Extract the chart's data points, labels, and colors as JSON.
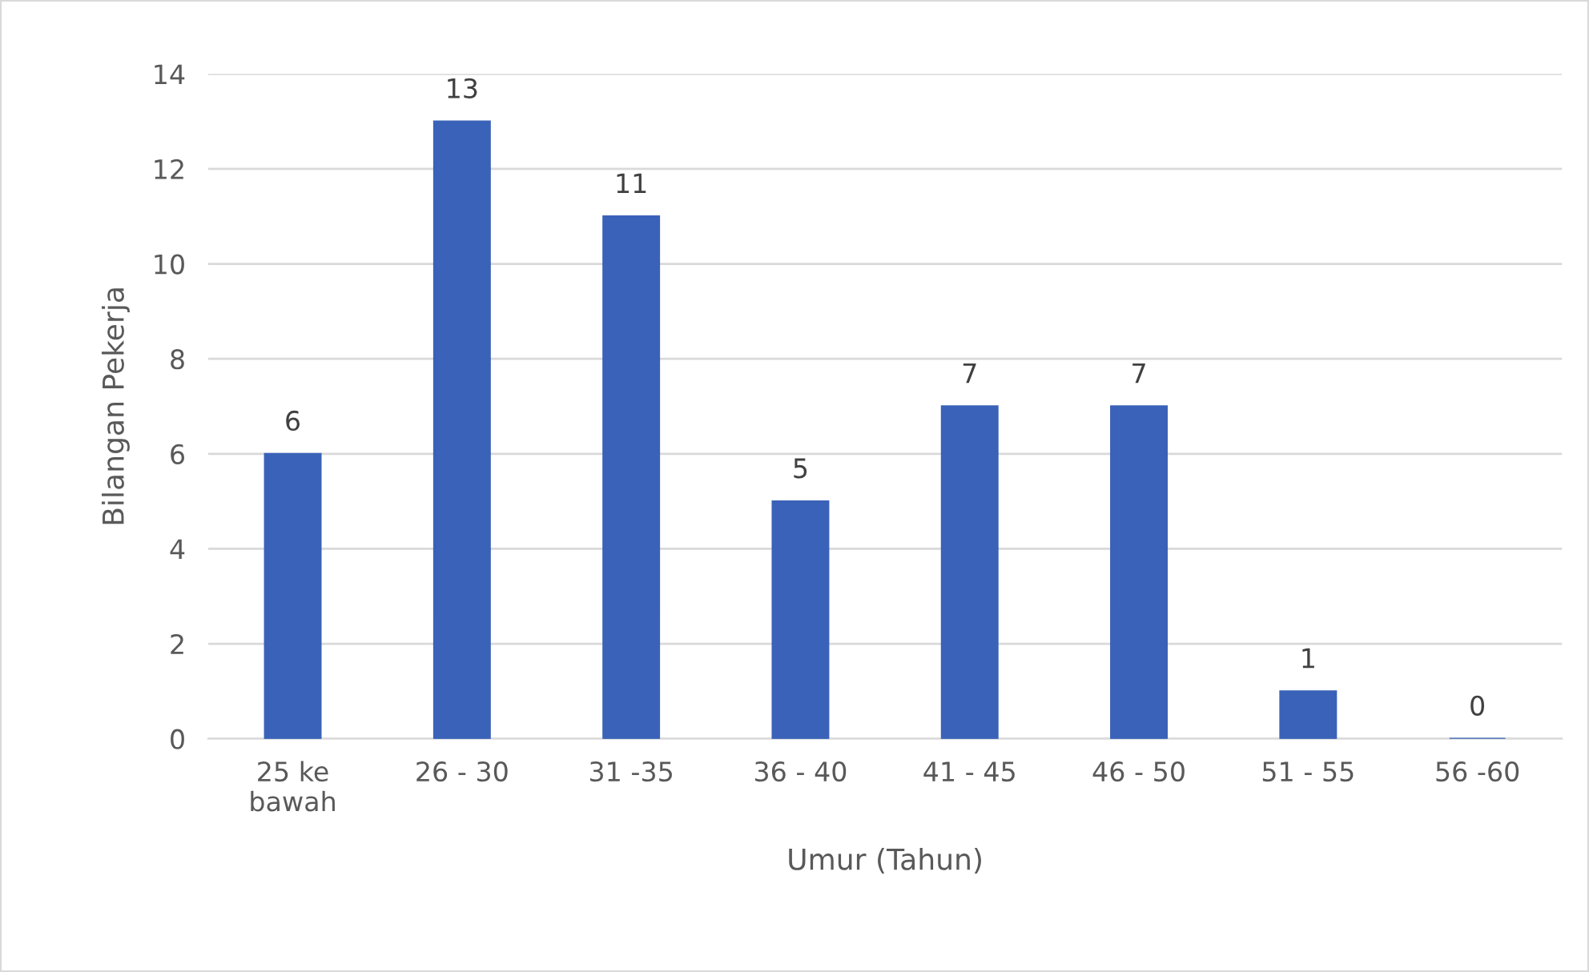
{
  "chart_data": {
    "type": "bar",
    "xlabel": "Umur (Tahun)",
    "ylabel": "Bilangan Pekerja",
    "categories": [
      "25 ke bawah",
      "26 - 30",
      "31 -35",
      "36 - 40",
      "41 - 45",
      "46 - 50",
      "51 - 55",
      "56 -60"
    ],
    "values": [
      6,
      13,
      11,
      5,
      7,
      7,
      1,
      0
    ],
    "color": "#3a62b8",
    "ylim": [
      0,
      14
    ],
    "yticks": [
      0,
      2,
      4,
      6,
      8,
      10,
      12,
      14
    ],
    "grid": "y",
    "data_labels": true
  }
}
